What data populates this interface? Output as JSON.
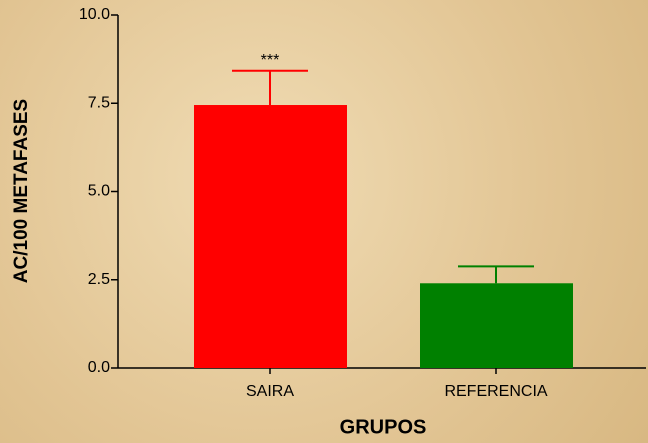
{
  "chart_data": {
    "type": "bar",
    "xlabel": "GRUPOS",
    "ylabel": "AC/100 METAFASES",
    "categories": [
      "SAIRA",
      "REFERENCIA"
    ],
    "values": [
      7.45,
      2.4
    ],
    "errors": [
      0.97,
      0.48
    ],
    "colors": [
      "#ff0000",
      "#008000"
    ],
    "annotations": [
      {
        "text": "***",
        "x": "SAIRA"
      }
    ],
    "ylim": [
      0,
      10
    ],
    "yticks": [
      {
        "value": 0,
        "label": "0.0"
      },
      {
        "value": 2.5,
        "label": "2.5"
      },
      {
        "value": 5,
        "label": "5.0"
      },
      {
        "value": 7.5,
        "label": "7.5"
      },
      {
        "value": 10,
        "label": "10.0"
      }
    ]
  }
}
